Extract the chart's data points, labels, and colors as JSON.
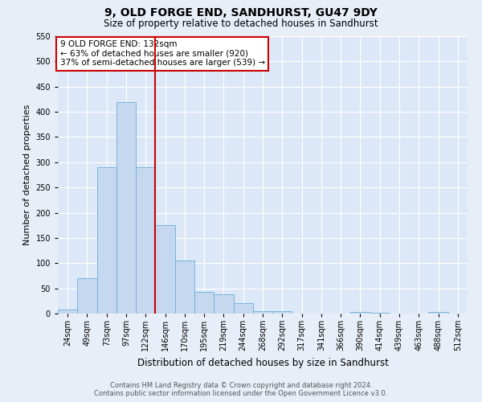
{
  "title": "9, OLD FORGE END, SANDHURST, GU47 9DY",
  "subtitle": "Size of property relative to detached houses in Sandhurst",
  "xlabel": "Distribution of detached houses by size in Sandhurst",
  "ylabel": "Number of detached properties",
  "bar_color": "#c5d8f0",
  "bar_edge_color": "#6baed6",
  "background_color": "#dce8f8",
  "fig_background": "#e8eef8",
  "grid_color": "#ffffff",
  "bins": [
    "24sqm",
    "49sqm",
    "73sqm",
    "97sqm",
    "122sqm",
    "146sqm",
    "170sqm",
    "195sqm",
    "219sqm",
    "244sqm",
    "268sqm",
    "292sqm",
    "317sqm",
    "341sqm",
    "366sqm",
    "390sqm",
    "414sqm",
    "439sqm",
    "463sqm",
    "488sqm",
    "512sqm"
  ],
  "values": [
    8,
    70,
    290,
    420,
    290,
    175,
    105,
    43,
    38,
    20,
    5,
    5,
    0,
    0,
    0,
    3,
    2,
    0,
    0,
    3,
    0
  ],
  "vline_x_idx": 4,
  "vline_color": "#cc0000",
  "annotation_title": "9 OLD FORGE END: 132sqm",
  "annotation_line1": "← 63% of detached houses are smaller (920)",
  "annotation_line2": "37% of semi-detached houses are larger (539) →",
  "annotation_box_color": "#ffffff",
  "annotation_box_edge": "#cc0000",
  "ylim": [
    0,
    550
  ],
  "yticks": [
    0,
    50,
    100,
    150,
    200,
    250,
    300,
    350,
    400,
    450,
    500,
    550
  ],
  "footer1": "Contains HM Land Registry data © Crown copyright and database right 2024.",
  "footer2": "Contains public sector information licensed under the Open Government Licence v3.0.",
  "title_fontsize": 10,
  "subtitle_fontsize": 8.5,
  "ylabel_fontsize": 8,
  "xlabel_fontsize": 8.5,
  "tick_fontsize": 7,
  "annotation_fontsize": 7.5,
  "footer_fontsize": 6
}
